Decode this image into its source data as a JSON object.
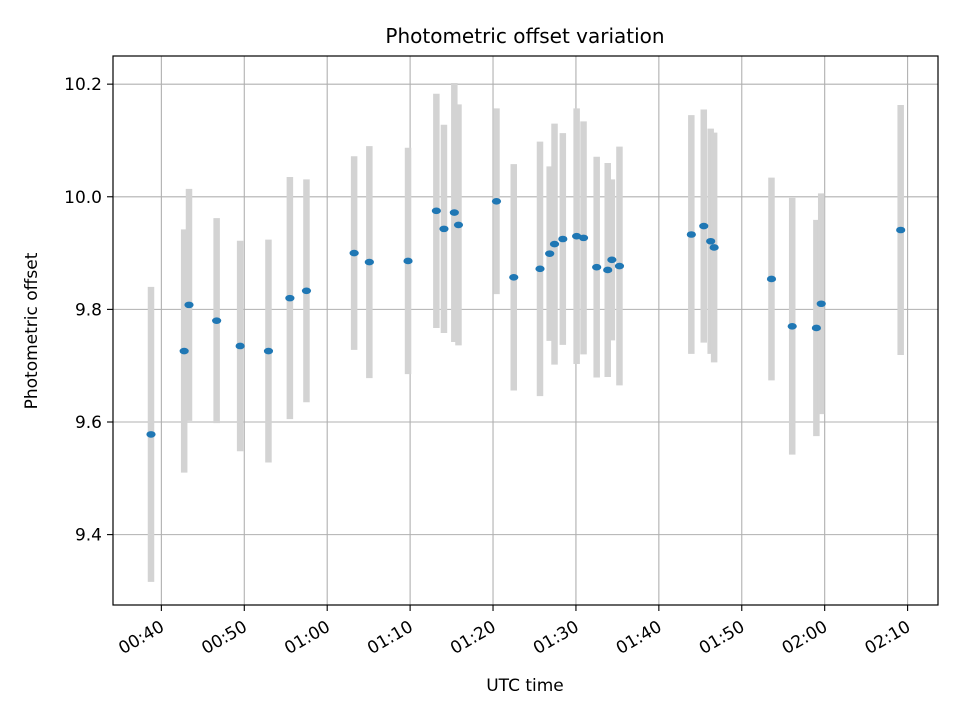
{
  "chart_data": {
    "type": "scatter",
    "title": "Photometric offset variation",
    "xlabel": "UTC time",
    "ylabel": "Photometric offset",
    "grid": true,
    "x_tick_labels": [
      "00:40",
      "00:50",
      "01:00",
      "01:10",
      "01:20",
      "01:30",
      "01:40",
      "01:50",
      "02:00",
      "02:10"
    ],
    "y_tick_labels": [
      "9.4",
      "9.6",
      "9.8",
      "10.0",
      "10.2"
    ],
    "x_ticks": [
      "00:40",
      "00:50",
      "01:00",
      "01:10",
      "01:20",
      "01:30",
      "01:40",
      "01:50",
      "02:00",
      "02:10"
    ],
    "y_ticks": [
      9.4,
      9.6,
      9.8,
      10.0,
      10.2
    ],
    "xlim": [
      "00:34:10",
      "02:13:40"
    ],
    "ylim": [
      9.275,
      10.25
    ],
    "colors": {
      "marker": "#1f77b4",
      "errorbar": "#d3d3d3",
      "grid": "#b0b0b0"
    },
    "points": [
      {
        "x": "00:38:45",
        "y": 9.578,
        "err": 0.262
      },
      {
        "x": "00:42:45",
        "y": 9.726,
        "err": 0.216
      },
      {
        "x": "00:43:20",
        "y": 9.808,
        "err": 0.206
      },
      {
        "x": "00:46:40",
        "y": 9.78,
        "err": 0.182
      },
      {
        "x": "00:49:30",
        "y": 9.735,
        "err": 0.187
      },
      {
        "x": "00:52:55",
        "y": 9.726,
        "err": 0.198
      },
      {
        "x": "00:55:30",
        "y": 9.82,
        "err": 0.215
      },
      {
        "x": "00:57:30",
        "y": 9.833,
        "err": 0.198
      },
      {
        "x": "01:03:15",
        "y": 9.9,
        "err": 0.172
      },
      {
        "x": "01:05:05",
        "y": 9.884,
        "err": 0.206
      },
      {
        "x": "01:09:45",
        "y": 9.886,
        "err": 0.201
      },
      {
        "x": "01:13:10",
        "y": 9.975,
        "err": 0.208
      },
      {
        "x": "01:14:05",
        "y": 9.943,
        "err": 0.185
      },
      {
        "x": "01:15:20",
        "y": 9.972,
        "err": 0.23
      },
      {
        "x": "01:15:50",
        "y": 9.95,
        "err": 0.214
      },
      {
        "x": "01:20:25",
        "y": 9.992,
        "err": 0.165
      },
      {
        "x": "01:22:30",
        "y": 9.857,
        "err": 0.201
      },
      {
        "x": "01:25:40",
        "y": 9.872,
        "err": 0.226
      },
      {
        "x": "01:26:50",
        "y": 9.899,
        "err": 0.155
      },
      {
        "x": "01:27:25",
        "y": 9.916,
        "err": 0.214
      },
      {
        "x": "01:28:25",
        "y": 9.925,
        "err": 0.188
      },
      {
        "x": "01:30:05",
        "y": 9.93,
        "err": 0.227
      },
      {
        "x": "01:30:55",
        "y": 9.927,
        "err": 0.207
      },
      {
        "x": "01:32:30",
        "y": 9.875,
        "err": 0.196
      },
      {
        "x": "01:33:50",
        "y": 9.87,
        "err": 0.19
      },
      {
        "x": "01:34:20",
        "y": 9.888,
        "err": 0.143
      },
      {
        "x": "01:35:15",
        "y": 9.877,
        "err": 0.212
      },
      {
        "x": "01:43:55",
        "y": 9.933,
        "err": 0.212
      },
      {
        "x": "01:45:25",
        "y": 9.948,
        "err": 0.207
      },
      {
        "x": "01:46:15",
        "y": 9.921,
        "err": 0.2
      },
      {
        "x": "01:46:40",
        "y": 9.91,
        "err": 0.204
      },
      {
        "x": "01:53:35",
        "y": 9.854,
        "err": 0.18
      },
      {
        "x": "01:56:05",
        "y": 9.77,
        "err": 0.228
      },
      {
        "x": "01:59:00",
        "y": 9.767,
        "err": 0.192
      },
      {
        "x": "01:59:35",
        "y": 9.81,
        "err": 0.196
      },
      {
        "x": "02:09:10",
        "y": 9.941,
        "err": 0.222
      }
    ]
  }
}
